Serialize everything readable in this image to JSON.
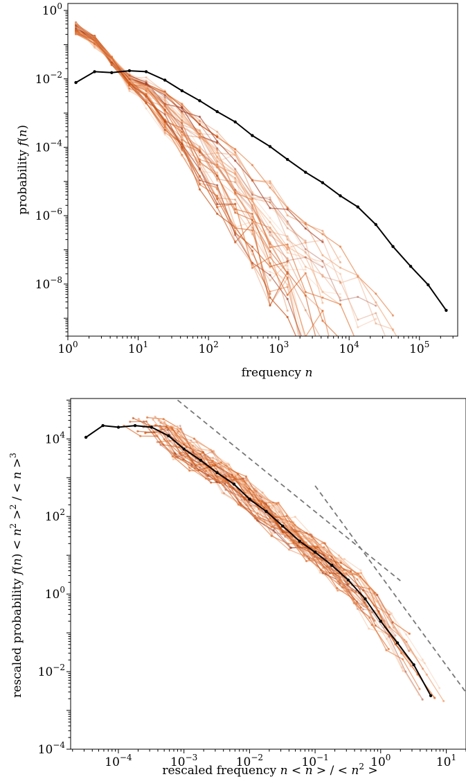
{
  "chart_data": [
    {
      "type": "line",
      "x_scale": "log",
      "y_scale": "log",
      "xlim": [
        1,
        350000
      ],
      "ylim": [
        3e-10,
        1.6
      ],
      "xlabel": "frequency n",
      "ylabel": "probability f(n)",
      "x_ticks": [
        {
          "value": 1,
          "base": "10",
          "exp": "0"
        },
        {
          "value": 10,
          "base": "10",
          "exp": "1"
        },
        {
          "value": 100,
          "base": "10",
          "exp": "2"
        },
        {
          "value": 1000,
          "base": "10",
          "exp": "3"
        },
        {
          "value": 10000,
          "base": "10",
          "exp": "4"
        },
        {
          "value": 100000,
          "base": "10",
          "exp": "5"
        }
      ],
      "y_ticks": [
        {
          "value": 1,
          "base": "10",
          "exp": "0"
        },
        {
          "value": 0.01,
          "base": "10",
          "exp": "−2"
        },
        {
          "value": 0.0001,
          "base": "10",
          "exp": "−4"
        },
        {
          "value": 1e-06,
          "base": "10",
          "exp": "−6"
        },
        {
          "value": 1e-08,
          "base": "10",
          "exp": "−8"
        }
      ],
      "aggregate_series": {
        "color": "#000000",
        "x": [
          1.3,
          2.4,
          4.2,
          7.5,
          13,
          24,
          42,
          75,
          133,
          240,
          420,
          750,
          1330,
          2400,
          4200,
          7500,
          13300,
          24000,
          42000,
          75000,
          133000,
          240000
        ],
        "y": [
          0.0078,
          0.0162,
          0.0152,
          0.0172,
          0.0162,
          0.0092,
          0.0045,
          0.0023,
          0.0011,
          0.00055,
          0.00022,
          0.000105,
          4.4e-05,
          1.85e-05,
          9.2e-06,
          3.8e-06,
          1.8e-06,
          5.5e-07,
          1.25e-07,
          3.3e-08,
          9.5e-09,
          1.7e-09
        ]
      },
      "individual_series": {
        "count": 45,
        "colors": [
          "#c44a0c",
          "#e07030",
          "#f0a070",
          "#a0402a",
          "#d8621e",
          "#f4b890"
        ]
      }
    },
    {
      "type": "line",
      "x_scale": "log",
      "y_scale": "log",
      "xlim": [
        1.87e-05,
        20
      ],
      "ylim": [
        0.0001,
        110000
      ],
      "xlabel": "rescaled frequency n < n > / < n² >",
      "ylabel": "rescaled probability f(n) < n² >² / < n >³",
      "x_ticks": [
        {
          "value": 0.0001,
          "base": "10",
          "exp": "−4"
        },
        {
          "value": 0.001,
          "base": "10",
          "exp": "−3"
        },
        {
          "value": 0.01,
          "base": "10",
          "exp": "−2"
        },
        {
          "value": 0.1,
          "base": "10",
          "exp": "−1"
        },
        {
          "value": 1,
          "base": "10",
          "exp": "0"
        },
        {
          "value": 10,
          "base": "10",
          "exp": "1"
        }
      ],
      "y_ticks": [
        {
          "value": 10000,
          "base": "10",
          "exp": "4"
        },
        {
          "value": 100,
          "base": "10",
          "exp": "2"
        },
        {
          "value": 1,
          "base": "10",
          "exp": "0"
        },
        {
          "value": 0.01,
          "base": "10",
          "exp": "−2"
        },
        {
          "value": 0.0001,
          "base": "10",
          "exp": "−4"
        }
      ],
      "aggregate_series": {
        "color": "#000000",
        "x": [
          3.2e-05,
          5.8e-05,
          0.0001,
          0.00018,
          0.00032,
          0.00058,
          0.001,
          0.0018,
          0.0032,
          0.0058,
          0.01,
          0.018,
          0.032,
          0.058,
          0.1,
          0.18,
          0.32,
          0.58,
          1.0,
          1.8,
          3.2,
          5.8
        ],
        "y": [
          11000,
          22000,
          20000,
          22000,
          20000,
          12000,
          5500,
          2800,
          1350,
          680,
          280,
          135,
          57,
          23,
          12,
          5.5,
          2.3,
          0.75,
          0.2,
          0.055,
          0.015,
          0.0024
        ]
      },
      "reference_lines": [
        {
          "style": "dashed",
          "color": "#777777",
          "x": [
            0.0008,
            2.0
          ],
          "y": [
            100000,
            2.2
          ]
        },
        {
          "style": "dashed",
          "color": "#777777",
          "x": [
            0.1,
            20
          ],
          "y": [
            620,
            0.0029
          ]
        }
      ],
      "individual_series": {
        "count": 45,
        "colors": [
          "#c44a0c",
          "#e07030",
          "#f0a070",
          "#a0402a",
          "#d8621e",
          "#f4b890"
        ]
      }
    }
  ]
}
